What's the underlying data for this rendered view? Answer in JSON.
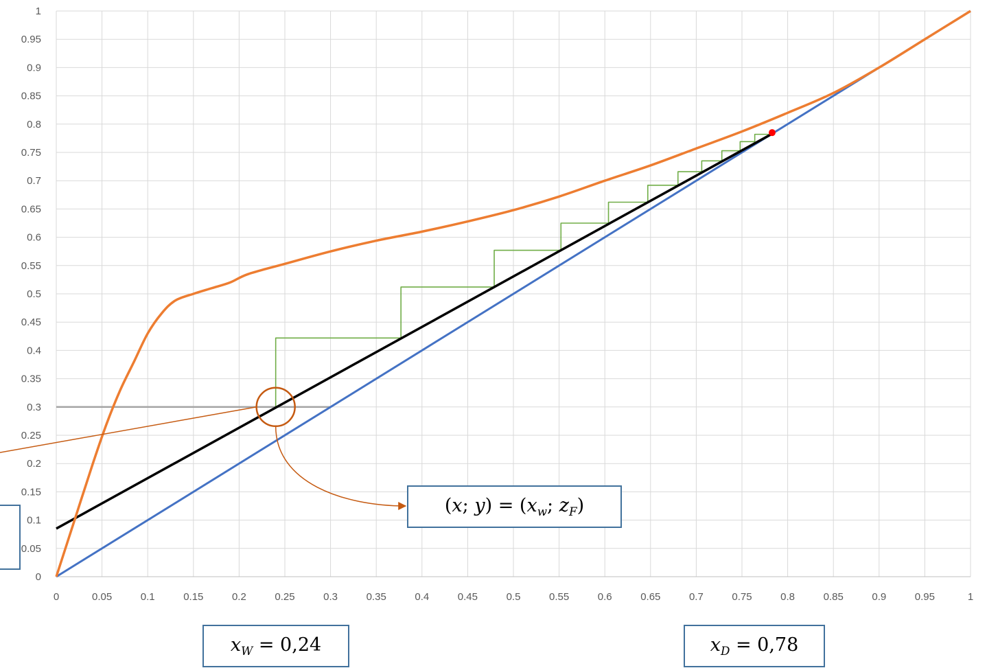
{
  "chart_data": {
    "type": "line",
    "title": "",
    "xlabel": "",
    "ylabel": "",
    "xlim": [
      0,
      1
    ],
    "ylim": [
      0,
      1
    ],
    "grid": true,
    "x_ticks": [
      "0",
      "0.05",
      "0.1",
      "0.15",
      "0.2",
      "0.25",
      "0.3",
      "0.35",
      "0.4",
      "0.45",
      "0.5",
      "0.55",
      "0.6",
      "0.65",
      "0.7",
      "0.75",
      "0.8",
      "0.85",
      "0.9",
      "0.95",
      "1"
    ],
    "y_ticks": [
      "0",
      "0.05",
      "0.1",
      "0.15",
      "0.2",
      "0.25",
      "0.3",
      "0.35",
      "0.4",
      "0.45",
      "0.5",
      "0.55",
      "0.6",
      "0.65",
      "0.7",
      "0.75",
      "0.8",
      "0.85",
      "0.9",
      "0.95",
      "1"
    ],
    "colors": {
      "equilibrium": "#ed7d31",
      "diagonal": "#4472c4",
      "operating": "#000000",
      "steps": "#70ad47",
      "feed_line": "#a5a5a5",
      "annotation": "#c55a11",
      "point": "#ff0000",
      "box_border": "#41719c"
    },
    "series": [
      {
        "key": "equilibrium",
        "points": [
          [
            0,
            0
          ],
          [
            0.02,
            0.1
          ],
          [
            0.04,
            0.2
          ],
          [
            0.055,
            0.27
          ],
          [
            0.07,
            0.33
          ],
          [
            0.085,
            0.38
          ],
          [
            0.1,
            0.43
          ],
          [
            0.115,
            0.465
          ],
          [
            0.13,
            0.488
          ],
          [
            0.15,
            0.5
          ],
          [
            0.17,
            0.51
          ],
          [
            0.19,
            0.52
          ],
          [
            0.21,
            0.535
          ],
          [
            0.25,
            0.553
          ],
          [
            0.3,
            0.575
          ],
          [
            0.35,
            0.594
          ],
          [
            0.4,
            0.61
          ],
          [
            0.45,
            0.628
          ],
          [
            0.5,
            0.648
          ],
          [
            0.55,
            0.672
          ],
          [
            0.6,
            0.7
          ],
          [
            0.65,
            0.727
          ],
          [
            0.7,
            0.757
          ],
          [
            0.75,
            0.787
          ],
          [
            0.8,
            0.82
          ],
          [
            0.85,
            0.855
          ],
          [
            0.9,
            0.9
          ],
          [
            0.95,
            0.95
          ],
          [
            1,
            1
          ]
        ]
      },
      {
        "key": "diagonal",
        "points": [
          [
            0,
            0
          ],
          [
            1,
            1
          ]
        ]
      },
      {
        "key": "operating",
        "points": [
          [
            0,
            0.085
          ],
          [
            0.783,
            0.783
          ]
        ]
      },
      {
        "key": "steps",
        "points": [
          [
            0.24,
            0.3
          ],
          [
            0.24,
            0.422
          ],
          [
            0.377,
            0.422
          ],
          [
            0.377,
            0.512
          ],
          [
            0.479,
            0.512
          ],
          [
            0.479,
            0.577
          ],
          [
            0.552,
            0.577
          ],
          [
            0.552,
            0.625
          ],
          [
            0.604,
            0.625
          ],
          [
            0.604,
            0.662
          ],
          [
            0.647,
            0.662
          ],
          [
            0.647,
            0.692
          ],
          [
            0.68,
            0.692
          ],
          [
            0.68,
            0.716
          ],
          [
            0.706,
            0.716
          ],
          [
            0.706,
            0.735
          ],
          [
            0.728,
            0.735
          ],
          [
            0.728,
            0.753
          ],
          [
            0.748,
            0.753
          ],
          [
            0.748,
            0.769
          ],
          [
            0.764,
            0.769
          ],
          [
            0.764,
            0.782
          ],
          [
            0.779,
            0.782
          ]
        ]
      },
      {
        "key": "feed_line",
        "points": [
          [
            0,
            0.3
          ],
          [
            0.3,
            0.3
          ]
        ]
      }
    ],
    "marker_point": [
      0.783,
      0.785
    ],
    "highlight_point": [
      0.24,
      0.3
    ]
  },
  "labels": {
    "xw_var": "x",
    "xw_sub": "W",
    "xw_value": " = 0,24",
    "xd_var": "x",
    "xd_sub": "D",
    "xd_value": " = 0,78",
    "point_open": "(",
    "point_x": "x",
    "point_sep1": "; ",
    "point_y": "y",
    "point_mid": ") = (",
    "point_xw_var": "x",
    "point_xw_sub": "w",
    "point_sep2": "; ",
    "point_zf_var": "z",
    "point_zf_sub": "F",
    "point_close": ")"
  }
}
